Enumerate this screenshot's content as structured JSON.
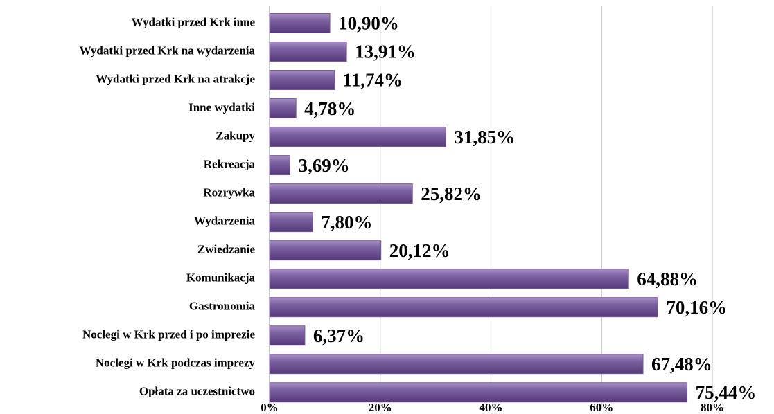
{
  "chart_data": {
    "type": "bar",
    "orientation": "horizontal",
    "categories": [
      "Wydatki przed Krk inne",
      "Wydatki przed Krk na wydarzenia",
      "Wydatki przed Krk na atrakcje",
      "Inne wydatki",
      "Zakupy",
      "Rekreacja",
      "Rozrywka",
      "Wydarzenia",
      "Zwiedzanie",
      "Komunikacja",
      "Gastronomia",
      "Noclegi w Krk przed i po imprezie",
      "Noclegi w Krk podczas imprezy",
      "Opłata za uczestnictwo"
    ],
    "values": [
      10.9,
      13.91,
      11.74,
      4.78,
      31.85,
      3.69,
      25.82,
      7.8,
      20.12,
      64.88,
      70.16,
      6.37,
      67.48,
      75.44
    ],
    "value_labels": [
      "10,90%",
      "13,91%",
      "11,74%",
      "4,78%",
      "31,85%",
      "3,69%",
      "25,82%",
      "7,80%",
      "20,12%",
      "64,88%",
      "70,16%",
      "6,37%",
      "67,48%",
      "75,44%"
    ],
    "color": "#75599a",
    "xlim": [
      0,
      80
    ],
    "xticks": [
      {
        "value": 0,
        "label": "0%"
      },
      {
        "value": 20,
        "label": "20%"
      },
      {
        "value": 40,
        "label": "40%"
      },
      {
        "value": 60,
        "label": "60%"
      },
      {
        "value": 80,
        "label": "80%"
      }
    ],
    "grid": true
  }
}
